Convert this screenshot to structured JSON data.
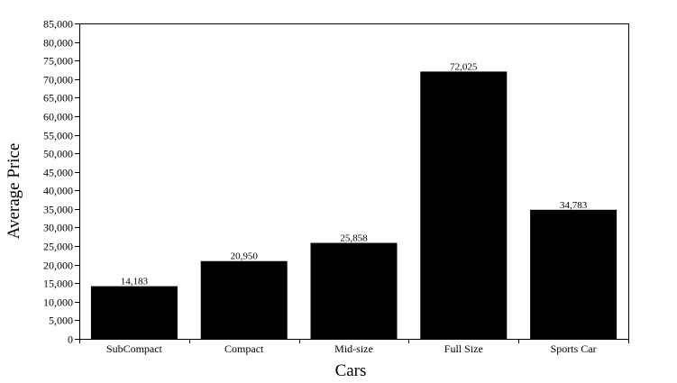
{
  "chart_data": {
    "type": "bar",
    "title": "",
    "xlabel": "Cars",
    "ylabel": "Average Price",
    "categories": [
      "SubCompact",
      "Compact",
      "Mid-size",
      "Full Size",
      "Sports Car"
    ],
    "values": [
      14183,
      20950,
      25858,
      72025,
      34783
    ],
    "value_labels": [
      "14,183",
      "20,950",
      "25,858",
      "72,025",
      "34,783"
    ],
    "ylim": [
      0,
      85000
    ],
    "y_ticks": [
      0,
      5000,
      10000,
      15000,
      20000,
      25000,
      30000,
      35000,
      40000,
      45000,
      50000,
      55000,
      60000,
      65000,
      70000,
      75000,
      80000,
      85000
    ],
    "y_tick_labels": [
      "0",
      "5,000",
      "10,000",
      "15,000",
      "20,000",
      "25,000",
      "30,000",
      "35,000",
      "40,000",
      "45,000",
      "50,000",
      "55,000",
      "60,000",
      "65,000",
      "70,000",
      "75,000",
      "80,000",
      "85,000"
    ],
    "bar_color": "#000000",
    "grid": false,
    "legend": "none"
  }
}
